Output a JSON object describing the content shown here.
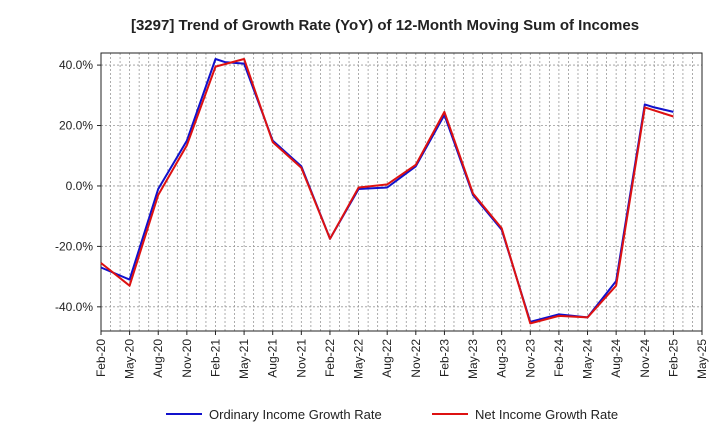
{
  "chart_data": {
    "type": "line",
    "title": "[3297]  Trend of Growth Rate (YoY) of 12-Month Moving Sum of Incomes",
    "xlabel": "",
    "ylabel": "",
    "ylim": [
      -48,
      44
    ],
    "y_ticks": [
      40,
      20,
      0,
      -20,
      -40
    ],
    "y_tick_format": "percent_1dp",
    "grid": true,
    "legend_position": "bottom",
    "categories": [
      "Feb-20",
      "May-20",
      "Aug-20",
      "Nov-20",
      "Feb-21",
      "May-21",
      "Aug-21",
      "Nov-21",
      "Feb-22",
      "May-22",
      "Aug-22",
      "Nov-22",
      "Feb-23",
      "May-23",
      "Aug-23",
      "Nov-23",
      "Feb-24",
      "May-24",
      "Aug-24",
      "Nov-24",
      "Feb-25",
      "May-25"
    ],
    "x_index_range": [
      0,
      63
    ],
    "series": [
      {
        "name": "Ordinary Income Growth Rate",
        "color": "#1111cc",
        "x": [
          0,
          3,
          6,
          9,
          12,
          13,
          15,
          18,
          21,
          24,
          27,
          30,
          33,
          36,
          39,
          42,
          45,
          48,
          51,
          54,
          57,
          58,
          60
        ],
        "y": [
          -27,
          -31,
          -1,
          15,
          42,
          41,
          40.5,
          15,
          6.5,
          -17.5,
          -1,
          -0.5,
          6.5,
          23.5,
          -3,
          -14.5,
          -45,
          -42.5,
          -43.5,
          -31.5,
          27,
          26,
          24.5
        ]
      },
      {
        "name": "Net Income Growth Rate",
        "color": "#dd1111",
        "x": [
          0,
          3,
          6,
          9,
          12,
          15,
          18,
          21,
          24,
          27,
          30,
          33,
          36,
          39,
          42,
          45,
          48,
          51,
          54,
          57,
          60
        ],
        "y": [
          -25.5,
          -33,
          -3,
          13.5,
          39.5,
          42,
          14.5,
          6,
          -17.5,
          -0.5,
          0.5,
          7,
          24.5,
          -2.5,
          -14,
          -45.5,
          -43,
          -43.5,
          -33,
          26,
          23
        ]
      }
    ]
  }
}
